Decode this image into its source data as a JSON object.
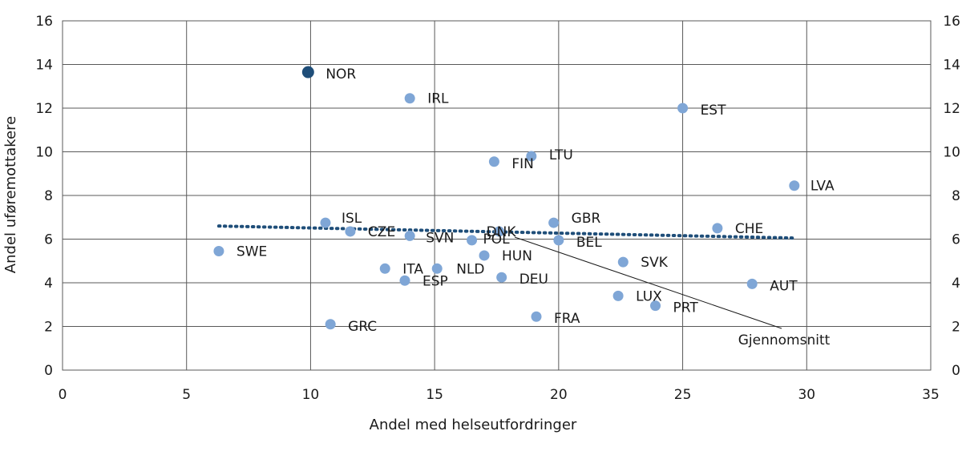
{
  "chart_data": {
    "type": "scatter",
    "xlabel": "Andel med helseutfordringer",
    "ylabel": "Andel uføremottakere",
    "xlim": [
      0,
      35
    ],
    "ylim": [
      0,
      16
    ],
    "x_ticks": [
      "0",
      "5",
      "10",
      "15",
      "20",
      "25",
      "30",
      "35"
    ],
    "y_ticks": [
      "0",
      "2",
      "4",
      "6",
      "8",
      "10",
      "12",
      "14",
      "16"
    ],
    "y_ticks_right": [
      "0",
      "2",
      "4",
      "6",
      "8",
      "10",
      "12",
      "14",
      "16"
    ],
    "grid": true,
    "points": [
      {
        "label": "NOR",
        "x": 9.9,
        "y": 13.65,
        "highlight": true
      },
      {
        "label": "IRL",
        "x": 14.0,
        "y": 12.45
      },
      {
        "label": "EST",
        "x": 25.0,
        "y": 12.0
      },
      {
        "label": "FIN",
        "x": 17.4,
        "y": 9.55
      },
      {
        "label": "LTU",
        "x": 18.9,
        "y": 9.8
      },
      {
        "label": "LVA",
        "x": 29.5,
        "y": 8.45
      },
      {
        "label": "ISL",
        "x": 10.6,
        "y": 6.75
      },
      {
        "label": "CZE",
        "x": 11.6,
        "y": 6.35
      },
      {
        "label": "SVN",
        "x": 14.0,
        "y": 6.15
      },
      {
        "label": "POL",
        "x": 16.5,
        "y": 5.95
      },
      {
        "label": "DNK",
        "x": 17.6,
        "y": 6.35
      },
      {
        "label": "GBR",
        "x": 19.8,
        "y": 6.75
      },
      {
        "label": "BEL",
        "x": 20.0,
        "y": 5.95
      },
      {
        "label": "CHE",
        "x": 26.4,
        "y": 6.5
      },
      {
        "label": "SWE",
        "x": 6.3,
        "y": 5.45
      },
      {
        "label": "HUN",
        "x": 17.0,
        "y": 5.25
      },
      {
        "label": "SVK",
        "x": 22.6,
        "y": 4.95
      },
      {
        "label": "ITA",
        "x": 13.0,
        "y": 4.65
      },
      {
        "label": "NLD",
        "x": 15.1,
        "y": 4.65
      },
      {
        "label": "ESP",
        "x": 13.8,
        "y": 4.1
      },
      {
        "label": "DEU",
        "x": 17.7,
        "y": 4.25
      },
      {
        "label": "AUT",
        "x": 27.8,
        "y": 3.95
      },
      {
        "label": "LUX",
        "x": 22.4,
        "y": 3.4
      },
      {
        "label": "PRT",
        "x": 23.9,
        "y": 2.95
      },
      {
        "label": "FRA",
        "x": 19.1,
        "y": 2.45
      },
      {
        "label": "GRC",
        "x": 10.8,
        "y": 2.1
      }
    ],
    "trendline": {
      "x": [
        6.3,
        29.5
      ],
      "y": [
        6.6,
        6.05
      ]
    },
    "annotation": {
      "text": "Gjennomsnitt"
    },
    "colors": {
      "point": "#7fa6d6",
      "highlight": "#1f4e79",
      "trendline": "#1f4e79",
      "grid": "#595959"
    }
  }
}
